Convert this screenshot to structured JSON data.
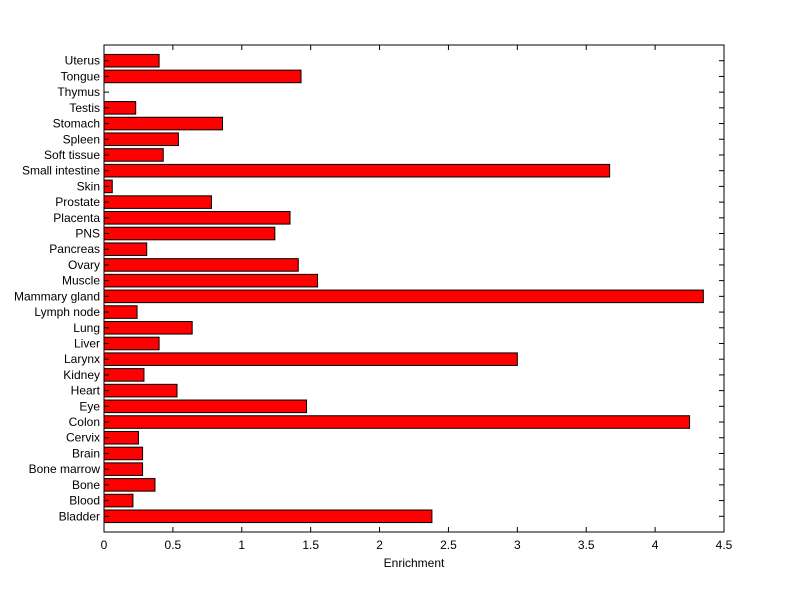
{
  "chart_data": {
    "type": "bar",
    "orientation": "horizontal",
    "categories": [
      "Bladder",
      "Blood",
      "Bone",
      "Bone marrow",
      "Brain",
      "Cervix",
      "Colon",
      "Eye",
      "Heart",
      "Kidney",
      "Larynx",
      "Liver",
      "Lung",
      "Lymph node",
      "Mammary gland",
      "Muscle",
      "Ovary",
      "Pancreas",
      "PNS",
      "Placenta",
      "Prostate",
      "Skin",
      "Small intestine",
      "Soft tissue",
      "Spleen",
      "Stomach",
      "Testis",
      "Thymus",
      "Tongue",
      "Uterus"
    ],
    "values": [
      2.38,
      0.21,
      0.37,
      0.28,
      0.28,
      0.25,
      4.25,
      1.47,
      0.53,
      0.29,
      3.0,
      0.4,
      0.64,
      0.24,
      4.35,
      1.55,
      1.41,
      0.31,
      1.24,
      1.35,
      0.78,
      0.06,
      3.67,
      0.43,
      0.54,
      0.86,
      0.23,
      0.0,
      1.43,
      0.4
    ],
    "xlabel": "Enrichment",
    "ylabel": "",
    "title": "",
    "xlim": [
      0,
      4.5
    ],
    "xticks": [
      "0",
      "0.5",
      "1",
      "1.5",
      "2",
      "2.5",
      "3",
      "3.5",
      "4",
      "4.5"
    ],
    "bar_color": "#ff0000",
    "grid": false
  }
}
